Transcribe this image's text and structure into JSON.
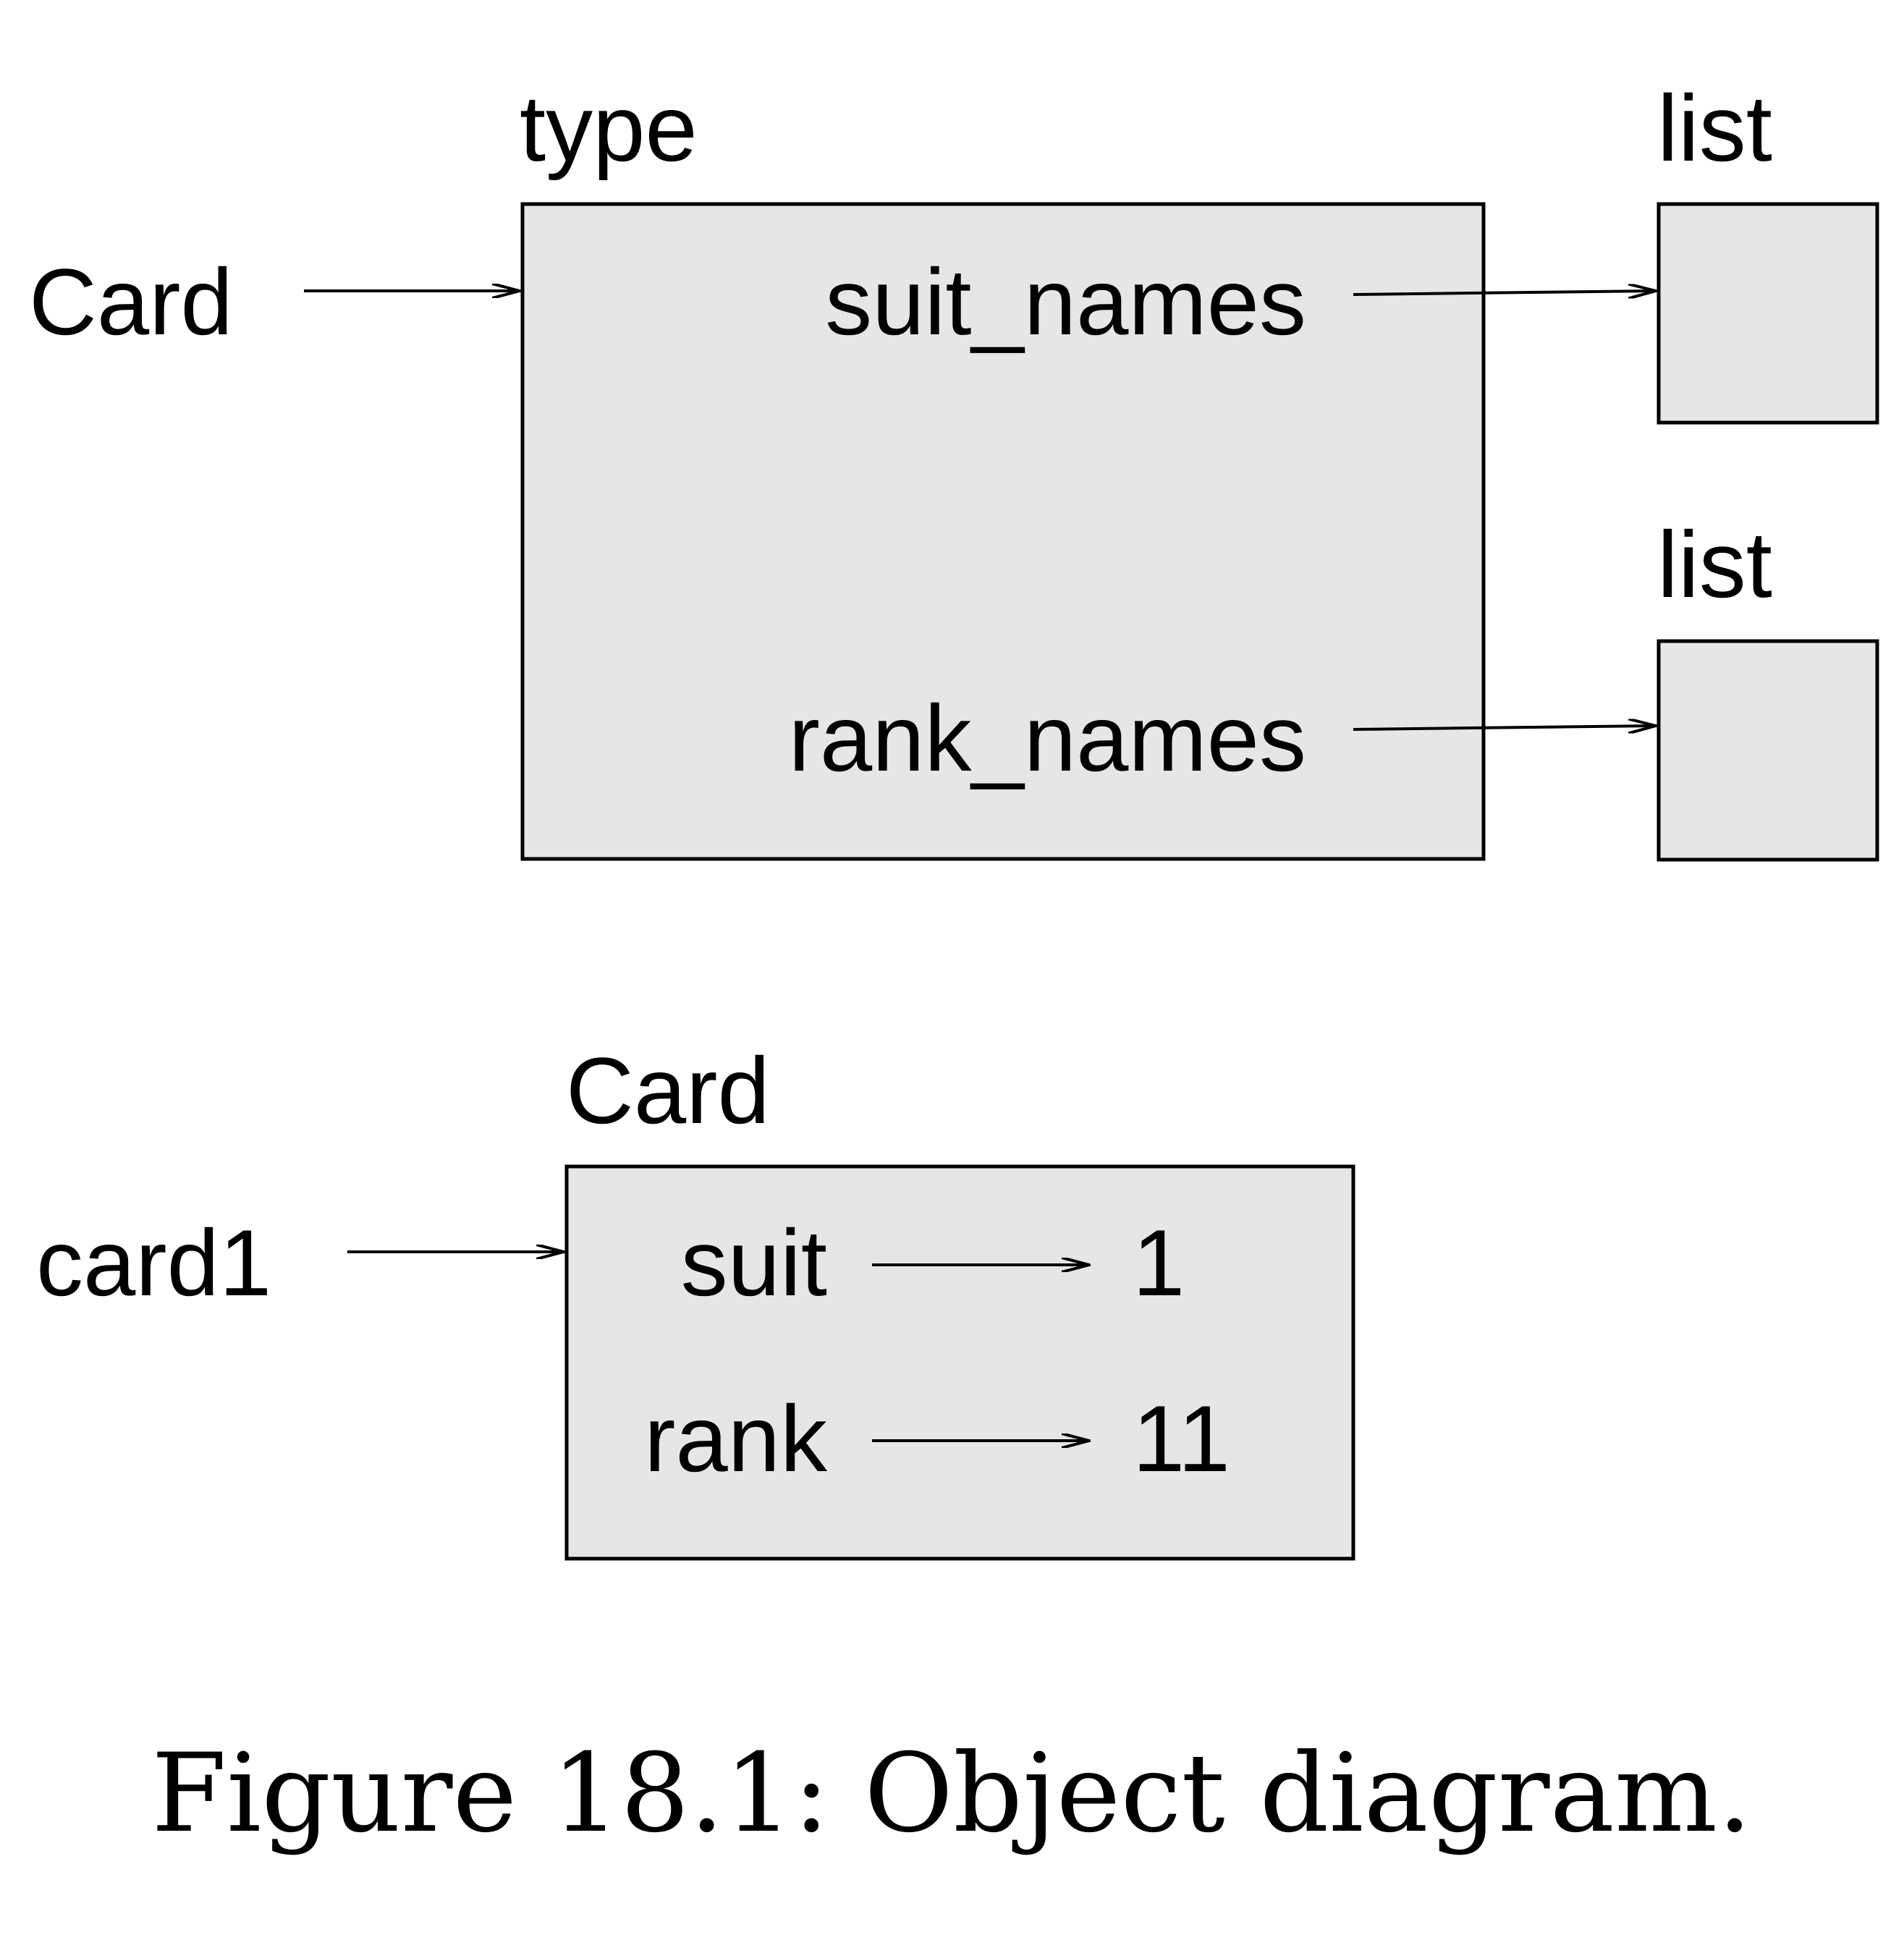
{
  "class_object": {
    "type_label": "type",
    "var_name": "Card",
    "attributes": [
      {
        "name": "suit_names",
        "target_type": "list"
      },
      {
        "name": "rank_names",
        "target_type": "list"
      }
    ]
  },
  "instance_object": {
    "type_label": "Card",
    "var_name": "card1",
    "attributes": [
      {
        "name": "suit",
        "value": "1"
      },
      {
        "name": "rank",
        "value": "11"
      }
    ]
  },
  "caption": "Figure 18.1: Object diagram."
}
